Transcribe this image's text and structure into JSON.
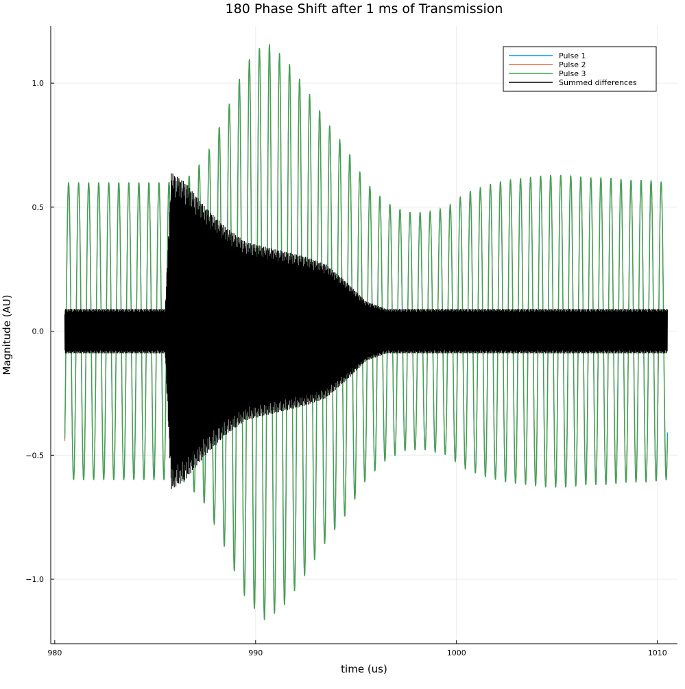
{
  "chart_data": {
    "type": "line",
    "title": "180 Phase Shift after 1 ms of Transmission",
    "xlabel": "time (us)",
    "ylabel": "Magnitude (AU)",
    "xlim": [
      979.8,
      1011.0
    ],
    "ylim": [
      -1.26,
      1.23
    ],
    "x_ticks": [
      980,
      990,
      1000,
      1010
    ],
    "x_tick_labels": [
      "980",
      "990",
      "1000",
      "1010"
    ],
    "y_ticks": [
      -1.0,
      -0.5,
      0.0,
      0.5,
      1.0
    ],
    "y_tick_labels": [
      "−1.0",
      "−0.5",
      "0.0",
      "0.5",
      "1.0"
    ],
    "grid": true,
    "legend_position": "top-right",
    "x_range": [
      980.5,
      1010.5
    ],
    "carrier_frequency_mhz": 2.0,
    "series": [
      {
        "name": "Pulse 1",
        "color": "#009af9",
        "phase_offset_rad": 0.05
      },
      {
        "name": "Pulse 2",
        "color": "#e26f46",
        "phase_offset_rad": -0.03
      },
      {
        "name": "Pulse 3",
        "color": "#3da44d",
        "phase_offset_rad": 0.0
      },
      {
        "name": "Summed differences",
        "color": "#000000"
      }
    ],
    "pulse_envelope": {
      "time_us": [
        980.5,
        985.5,
        986.5,
        987.5,
        988.5,
        989.5,
        990.5,
        991.5,
        992.5,
        993.5,
        994.5,
        995.5,
        996.5,
        997.5,
        998.5,
        999.5,
        1000.5,
        1001.5,
        1002.5,
        1003.5,
        1004.5,
        1005.5,
        1006.5,
        1007.5,
        1008.5,
        1009.5,
        1010.5
      ],
      "amplitude": [
        0.6,
        0.6,
        0.61,
        0.7,
        0.88,
        1.08,
        1.17,
        1.1,
        0.98,
        0.85,
        0.74,
        0.6,
        0.52,
        0.48,
        0.48,
        0.5,
        0.56,
        0.59,
        0.61,
        0.62,
        0.63,
        0.63,
        0.62,
        0.62,
        0.61,
        0.61,
        0.6
      ]
    },
    "summed_differences_envelope": {
      "time_us": [
        980.5,
        985.5,
        985.8,
        986.5,
        987.5,
        988.5,
        989.5,
        990.5,
        991.5,
        992.5,
        993.5,
        994.5,
        995.5,
        996.5,
        997.5,
        1010.5
      ],
      "amplitude": [
        0.09,
        0.09,
        0.64,
        0.6,
        0.5,
        0.42,
        0.36,
        0.34,
        0.32,
        0.3,
        0.27,
        0.2,
        0.12,
        0.09,
        0.09,
        0.09
      ]
    }
  }
}
